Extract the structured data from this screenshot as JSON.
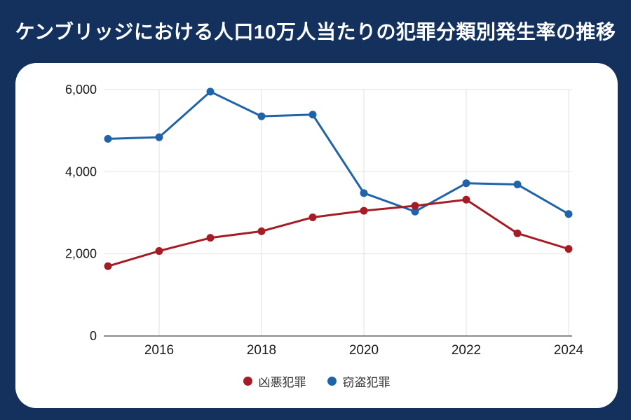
{
  "page": {
    "title": "ケンブリッジにおける人口10万人当たりの犯罪分類別発生率の推移",
    "background_color": "#14315e",
    "card_color": "#ffffff"
  },
  "chart_data": {
    "type": "line",
    "title": "ケンブリッジにおける人口10万人当たりの犯罪分類別発生率の推移",
    "x": [
      2015,
      2016,
      2017,
      2018,
      2019,
      2020,
      2021,
      2022,
      2023,
      2024
    ],
    "x_tick_labels": [
      "2016",
      "2018",
      "2020",
      "2022",
      "2024"
    ],
    "x_ticks": [
      2016,
      2018,
      2020,
      2022,
      2024
    ],
    "y_ticks": [
      0,
      2000,
      4000,
      6000
    ],
    "y_tick_labels": [
      "0",
      "2,000",
      "4,000",
      "6,000"
    ],
    "ylim": [
      0,
      6000
    ],
    "xlabel": "",
    "ylabel": "",
    "grid": true,
    "legend_position": "bottom",
    "series": [
      {
        "name": "凶悪犯罪",
        "slug": "violent-crime",
        "color": "#a61c24",
        "values": [
          1700,
          2070,
          2390,
          2550,
          2890,
          3050,
          3170,
          3320,
          2500,
          2120
        ]
      },
      {
        "name": "窃盗犯罪",
        "slug": "theft-crime",
        "color": "#1f63a8",
        "values": [
          4800,
          4840,
          5950,
          5350,
          5390,
          3480,
          3030,
          3720,
          3690,
          2970
        ]
      }
    ],
    "style": {
      "grid_color": "#e2e2e2",
      "axis_color": "#666666",
      "tick_label_color": "#1a1a1a",
      "line_width": 3,
      "marker_radius": 5.5
    }
  }
}
